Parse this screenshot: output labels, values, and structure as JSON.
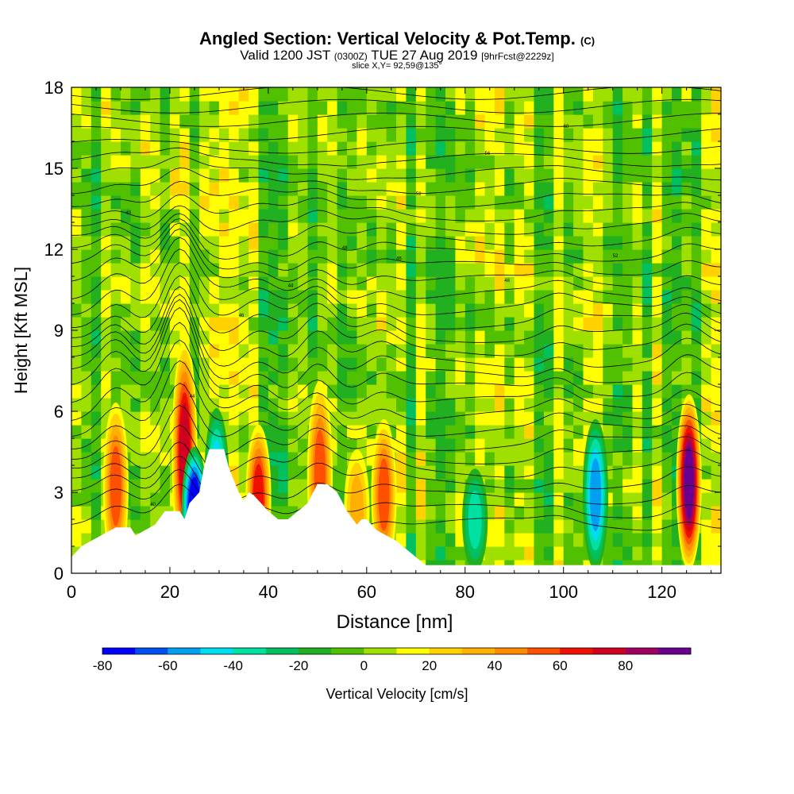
{
  "header": {
    "title": "Angled Section: Vertical Velocity & Pot.Temp.",
    "title_unit": "(C)",
    "valid_a": "Valid 1200 JST",
    "valid_b": "(0300Z)",
    "valid_c": "TUE 27 Aug 2019",
    "valid_d": "[9hrFcst@2229z]",
    "slice": "slice X,Y= 92,59@135°"
  },
  "chart_data": {
    "type": "heatmap",
    "xlabel": "Distance [nm]",
    "ylabel": "Height [Kft MSL]",
    "xlim": [
      0,
      132
    ],
    "ylim": [
      0,
      18
    ],
    "x_ticks": [
      "0",
      "20",
      "40",
      "60",
      "80",
      "100",
      "120"
    ],
    "y_ticks": [
      "0",
      "3",
      "6",
      "9",
      "12",
      "15",
      "18"
    ],
    "colorbar": {
      "label": "Vertical Velocity [cm/s]",
      "bins": [
        -80,
        -70,
        -60,
        -50,
        -40,
        -30,
        -20,
        -10,
        0,
        10,
        20,
        30,
        40,
        50,
        60,
        70,
        80,
        90
      ],
      "colors": [
        "#0000ff",
        "#0050f0",
        "#00a0f0",
        "#00dcf0",
        "#00e0a0",
        "#00c060",
        "#20b020",
        "#50c000",
        "#a0e000",
        "#ffff00",
        "#ffd200",
        "#ffb000",
        "#ff8c00",
        "#ff5000",
        "#ee1000",
        "#d00020",
        "#a00060",
        "#6a0090"
      ],
      "tick_labels": [
        "-80",
        "-60",
        "-40",
        "-20",
        "0",
        "20",
        "40",
        "60",
        "80"
      ]
    },
    "terrain_kft": [
      [
        0,
        0.6
      ],
      [
        2,
        1.0
      ],
      [
        6,
        1.4
      ],
      [
        9,
        1.7
      ],
      [
        12,
        1.7
      ],
      [
        13,
        1.4
      ],
      [
        17,
        1.8
      ],
      [
        19,
        2.3
      ],
      [
        22,
        2.3
      ],
      [
        23,
        2.0
      ],
      [
        24,
        2.6
      ],
      [
        26,
        3.0
      ],
      [
        27,
        4.0
      ],
      [
        28,
        4.6
      ],
      [
        31,
        4.6
      ],
      [
        32,
        3.9
      ],
      [
        34,
        3.0
      ],
      [
        35,
        2.7
      ],
      [
        36,
        3.0
      ],
      [
        37,
        2.9
      ],
      [
        38,
        2.7
      ],
      [
        40,
        2.3
      ],
      [
        42,
        2.0
      ],
      [
        44,
        2.0
      ],
      [
        46,
        2.3
      ],
      [
        48,
        2.6
      ],
      [
        50,
        3.3
      ],
      [
        52,
        3.3
      ],
      [
        54,
        3.0
      ],
      [
        56,
        2.3
      ],
      [
        58,
        1.8
      ],
      [
        59,
        2.0
      ],
      [
        60,
        2.0
      ],
      [
        62,
        1.6
      ],
      [
        64,
        1.4
      ],
      [
        66,
        1.2
      ],
      [
        68,
        0.9
      ],
      [
        70,
        0.6
      ],
      [
        72,
        0.3
      ],
      [
        74,
        0.3
      ],
      [
        132,
        0.3
      ]
    ],
    "updrafts": [
      {
        "x": 9,
        "top": 6.2,
        "peak": 55
      },
      {
        "x": 23,
        "top": 8.5,
        "peak": 70
      },
      {
        "x": 38,
        "top": 5.4,
        "peak": 60
      },
      {
        "x": 50.5,
        "top": 7.0,
        "peak": 50
      },
      {
        "x": 58,
        "top": 4.5,
        "peak": 35
      },
      {
        "x": 63.5,
        "top": 5.6,
        "peak": 55
      },
      {
        "x": 125.5,
        "top": 6.5,
        "peak": 90
      }
    ],
    "downdrafts": [
      {
        "x": 25,
        "top": 4.6,
        "peak": -80
      },
      {
        "x": 29.5,
        "top": 6.0,
        "peak": -50
      },
      {
        "x": 82,
        "top": 3.8,
        "peak": -30
      },
      {
        "x": 106.5,
        "top": 5.6,
        "peak": -50
      }
    ],
    "contour_labels": [
      "40",
      "44",
      "46",
      "48",
      "52",
      "56",
      "60"
    ]
  }
}
